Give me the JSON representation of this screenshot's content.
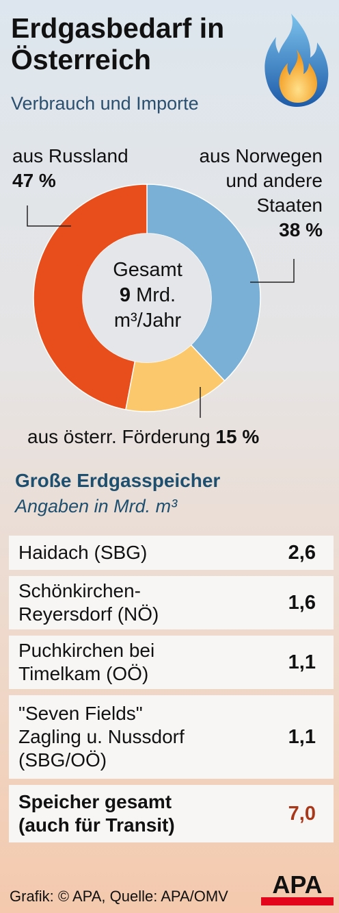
{
  "header": {
    "title_line1": "Erdgasbedarf in",
    "title_line2": "Österreich",
    "subtitle": "Verbrauch und Importe"
  },
  "chart_data": {
    "type": "pie",
    "style": "donut",
    "title": "Erdgasbedarf in Österreich",
    "subtitle": "Verbrauch und Importe",
    "center_label": {
      "line1": "Gesamt",
      "value": "9",
      "unit": "Mrd.",
      "line3": "m³/Jahr"
    },
    "slices": [
      {
        "label_lines": [
          "aus Norwegen",
          "und andere",
          "Staaten"
        ],
        "value": 38,
        "value_text": "38 %",
        "color": "#7aafd6"
      },
      {
        "label_lines": [
          "aus österr. Förderung"
        ],
        "value": 15,
        "value_text": "15 %",
        "color": "#fbc86c"
      },
      {
        "label_lines": [
          "aus Russland"
        ],
        "value": 47,
        "value_text": "47 %",
        "color": "#e84e1b"
      }
    ]
  },
  "storage": {
    "title": "Große Erdgasspeicher",
    "subtitle": "Angaben in Mrd. m³",
    "rows": [
      {
        "name_lines": [
          "Haidach (SBG)"
        ],
        "value": "2,6"
      },
      {
        "name_lines": [
          "Schönkirchen-",
          "Reyersdorf (NÖ)"
        ],
        "value": "1,6"
      },
      {
        "name_lines": [
          "Puchkirchen bei",
          "Timelkam (OÖ)"
        ],
        "value": "1,1"
      },
      {
        "name_lines": [
          "\"Seven Fields\"",
          "Zagling u. Nussdorf",
          "(SBG/OÖ)"
        ],
        "value": "1,1"
      }
    ],
    "total": {
      "name_lines": [
        "Speicher gesamt",
        "(auch für Transit)"
      ],
      "value": "7,0",
      "color": "#a8381a"
    }
  },
  "footer": {
    "credit": "Grafik: © APA, Quelle: APA/OMV",
    "logo_text": "APA"
  }
}
